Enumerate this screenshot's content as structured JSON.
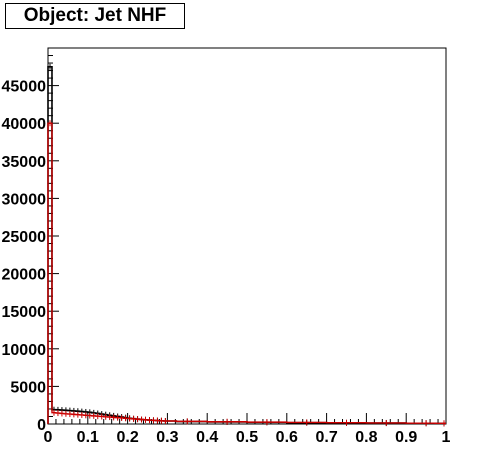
{
  "chart_data": {
    "type": "line",
    "title": "Object: Jet NHF",
    "xlabel": "",
    "ylabel": "",
    "xlim": [
      0,
      1
    ],
    "ylim": [
      0,
      50000
    ],
    "x_ticks": [
      0,
      0.1,
      0.2,
      0.3,
      0.4,
      0.5,
      0.6,
      0.7,
      0.8,
      0.9,
      1
    ],
    "x_tick_labels": [
      "0",
      "0.1",
      "0.2",
      "0.3",
      "0.4",
      "0.5",
      "0.6",
      "0.7",
      "0.8",
      "0.9",
      "1"
    ],
    "y_ticks": [
      0,
      5000,
      10000,
      15000,
      20000,
      25000,
      30000,
      35000,
      40000,
      45000
    ],
    "y_tick_labels": [
      "0",
      "5000",
      "10000",
      "15000",
      "20000",
      "25000",
      "30000",
      "35000",
      "40000",
      "45000"
    ],
    "grid": false,
    "legend": "none",
    "series": [
      {
        "color": "#000000",
        "x": [
          0.005,
          0.015,
          0.025,
          0.035,
          0.045,
          0.055,
          0.065,
          0.075,
          0.085,
          0.095,
          0.105,
          0.115,
          0.125,
          0.135,
          0.145,
          0.155,
          0.165,
          0.175,
          0.185,
          0.195,
          0.205,
          0.215,
          0.225,
          0.235,
          0.245,
          0.255,
          0.265,
          0.275,
          0.285,
          0.295,
          0.35,
          0.45,
          0.55,
          0.65,
          0.75,
          0.85,
          0.95,
          0.995
        ],
        "y": [
          47500,
          1900,
          1880,
          1850,
          1820,
          1780,
          1740,
          1700,
          1650,
          1600,
          1550,
          1480,
          1400,
          1320,
          1240,
          1160,
          1080,
          1000,
          920,
          840,
          760,
          700,
          650,
          600,
          560,
          520,
          490,
          460,
          430,
          400,
          330,
          270,
          220,
          180,
          150,
          120,
          100,
          80
        ]
      },
      {
        "color": "#cc0000",
        "x": [
          0.005,
          0.015,
          0.025,
          0.035,
          0.045,
          0.055,
          0.065,
          0.075,
          0.085,
          0.095,
          0.105,
          0.115,
          0.125,
          0.135,
          0.145,
          0.155,
          0.165,
          0.175,
          0.185,
          0.195,
          0.205,
          0.215,
          0.225,
          0.235,
          0.245,
          0.255,
          0.265,
          0.275,
          0.285,
          0.295,
          0.35,
          0.45,
          0.55,
          0.65,
          0.75,
          0.85,
          0.95,
          0.995
        ],
        "y": [
          40000,
          1500,
          1450,
          1400,
          1360,
          1320,
          1280,
          1240,
          1200,
          1160,
          1120,
          1080,
          1040,
          1000,
          960,
          920,
          880,
          840,
          800,
          760,
          720,
          680,
          640,
          600,
          560,
          520,
          490,
          460,
          430,
          400,
          350,
          300,
          250,
          210,
          170,
          140,
          110,
          90
        ]
      }
    ]
  }
}
